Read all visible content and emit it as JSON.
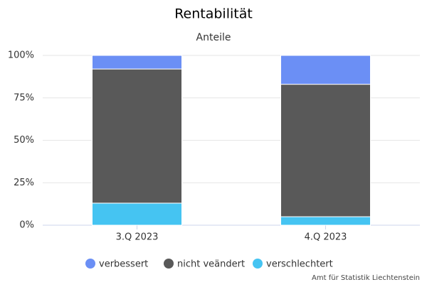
{
  "chart_data": {
    "type": "stacked_bar",
    "title": "Rentabilität",
    "subtitle": "Anteile",
    "categories": [
      "3.Q 2023",
      "4.Q 2023"
    ],
    "series": [
      {
        "name": "verbessert",
        "color": "#6b8ff5",
        "values": [
          8,
          17
        ]
      },
      {
        "name": "nicht veändert",
        "color": "#595959",
        "values": [
          79,
          78
        ]
      },
      {
        "name": "verschlechtert",
        "color": "#45c4f2",
        "values": [
          13,
          5
        ]
      }
    ],
    "ylim": [
      0,
      100
    ],
    "yticks": [
      {
        "value": 0,
        "label": "0%"
      },
      {
        "value": 25,
        "label": "25%"
      },
      {
        "value": 50,
        "label": "50%"
      },
      {
        "value": 75,
        "label": "75%"
      },
      {
        "value": 100,
        "label": "100%"
      }
    ],
    "grid": true,
    "legend": "bottom",
    "credit": "Amt für Statistik Liechtenstein"
  }
}
